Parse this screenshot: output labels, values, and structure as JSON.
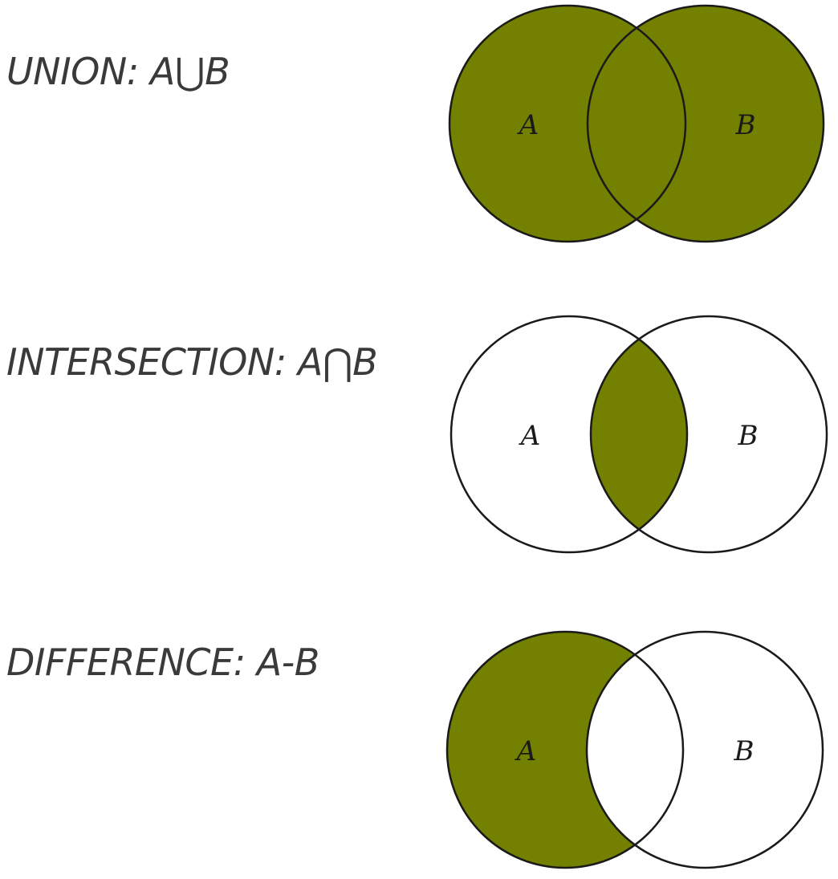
{
  "fill_color": "#738000",
  "outline_color": "#1a1a1a",
  "diagrams": [
    {
      "key": "union",
      "label": "UNION: A⋃B",
      "set_a": "A",
      "set_b": "B",
      "shaded_regions": [
        "A only",
        "A and B",
        "B only"
      ]
    },
    {
      "key": "intersection",
      "label": "INTERSECTION: A⋂B",
      "set_a": "A",
      "set_b": "B",
      "shaded_regions": [
        "A and B"
      ]
    },
    {
      "key": "difference",
      "label": "DIFFERENCE:  A-B",
      "set_a": "A",
      "set_b": "B",
      "shaded_regions": [
        "A only"
      ]
    }
  ]
}
